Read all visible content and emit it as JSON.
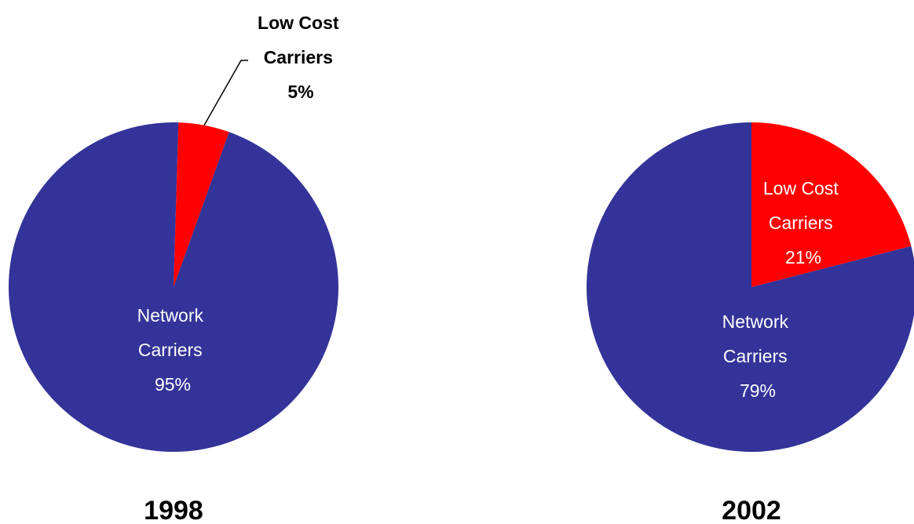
{
  "colors": {
    "network": "#333399",
    "low_cost": "#ff0000",
    "label_light": "#ffffff",
    "label_dark": "#000000",
    "background": "#ffffff"
  },
  "chart_data": [
    {
      "type": "pie",
      "title": "1998",
      "slices": [
        {
          "name": "Low Cost Carriers",
          "label_lines": [
            "Low Cost",
            "Carriers"
          ],
          "value": 5,
          "value_label": "5%",
          "color": "#ff0000"
        },
        {
          "name": "Network Carriers",
          "label_lines": [
            "Network",
            "Carriers"
          ],
          "value": 95,
          "value_label": "95%",
          "color": "#333399"
        }
      ]
    },
    {
      "type": "pie",
      "title": "2002",
      "slices": [
        {
          "name": "Low Cost Carriers",
          "label_lines": [
            "Low Cost",
            "Carriers"
          ],
          "value": 21,
          "value_label": "21%",
          "color": "#ff0000"
        },
        {
          "name": "Network Carriers",
          "label_lines": [
            "Network",
            "Carriers"
          ],
          "value": 79,
          "value_label": "79%",
          "color": "#333399"
        }
      ]
    }
  ]
}
